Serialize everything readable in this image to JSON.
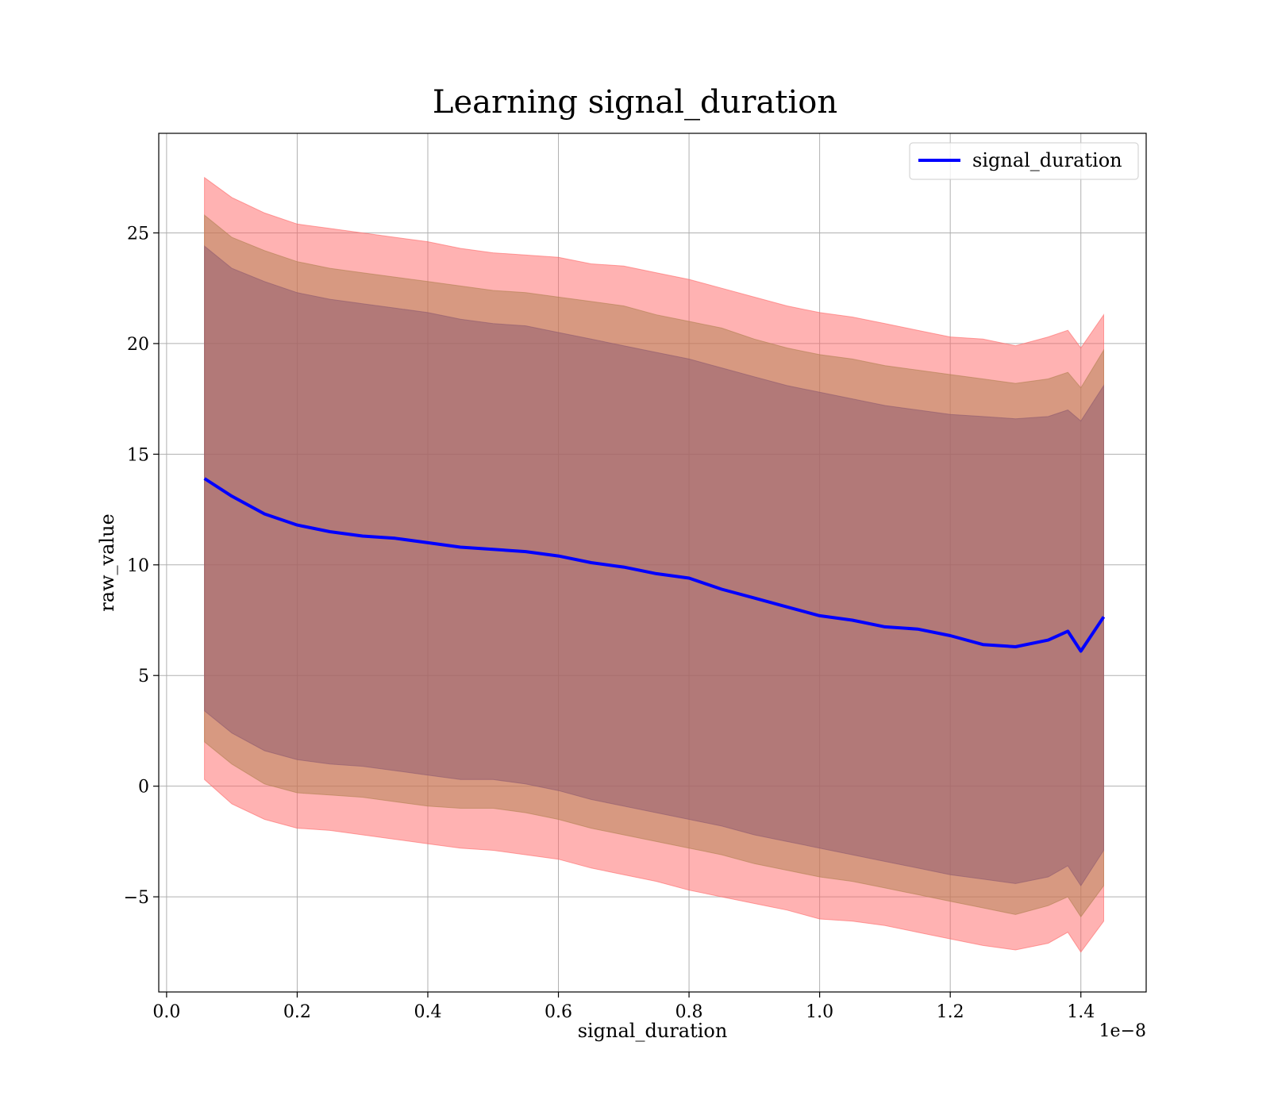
{
  "chart_data": {
    "type": "area",
    "title": "Learning signal_duration",
    "xlabel": "signal_duration",
    "ylabel": "raw_value",
    "x_scale_label": "1e−8",
    "xlim": [
      -0.012,
      1.5
    ],
    "ylim": [
      -9.3,
      29.5
    ],
    "x_ticks": [
      0.0,
      0.2,
      0.4,
      0.6,
      0.8,
      1.0,
      1.2,
      1.4
    ],
    "x_tick_labels": [
      "0.0",
      "0.2",
      "0.4",
      "0.6",
      "0.8",
      "1.0",
      "1.2",
      "1.4"
    ],
    "y_ticks": [
      -5,
      0,
      5,
      10,
      15,
      20,
      25
    ],
    "y_tick_labels": [
      "−5",
      "0",
      "5",
      "10",
      "15",
      "20",
      "25"
    ],
    "grid": true,
    "legend_placement": "top-right",
    "x": [
      0.058,
      0.1,
      0.15,
      0.2,
      0.25,
      0.3,
      0.35,
      0.4,
      0.45,
      0.5,
      0.55,
      0.6,
      0.65,
      0.7,
      0.75,
      0.8,
      0.85,
      0.9,
      0.95,
      1.0,
      1.05,
      1.1,
      1.15,
      1.2,
      1.25,
      1.3,
      1.35,
      1.38,
      1.4,
      1.435
    ],
    "series": [
      {
        "name": "signal_duration",
        "color": "#0000ff",
        "values": [
          13.9,
          13.1,
          12.3,
          11.8,
          11.5,
          11.3,
          11.2,
          11.0,
          10.8,
          10.7,
          10.6,
          10.4,
          10.1,
          9.9,
          9.6,
          9.4,
          8.9,
          8.5,
          8.1,
          7.7,
          7.5,
          7.2,
          7.1,
          6.8,
          6.4,
          6.3,
          6.6,
          7.0,
          6.1,
          7.65
        ]
      }
    ],
    "bands": [
      {
        "role": "outer",
        "color": "#ff6666",
        "lower": [
          0.3,
          -0.8,
          -1.5,
          -1.9,
          -2.0,
          -2.2,
          -2.4,
          -2.6,
          -2.8,
          -2.9,
          -3.1,
          -3.3,
          -3.7,
          -4.0,
          -4.3,
          -4.7,
          -5.0,
          -5.3,
          -5.6,
          -6.0,
          -6.1,
          -6.3,
          -6.6,
          -6.9,
          -7.2,
          -7.4,
          -7.1,
          -6.6,
          -7.5,
          -6.1
        ],
        "upper": [
          27.5,
          26.6,
          25.9,
          25.4,
          25.2,
          25.0,
          24.8,
          24.6,
          24.3,
          24.1,
          24.0,
          23.9,
          23.6,
          23.5,
          23.2,
          22.9,
          22.5,
          22.1,
          21.7,
          21.4,
          21.2,
          20.9,
          20.6,
          20.3,
          20.2,
          19.9,
          20.3,
          20.6,
          19.8,
          21.3
        ]
      },
      {
        "role": "middle",
        "color": "#b08050",
        "lower": [
          2.0,
          1.0,
          0.1,
          -0.3,
          -0.4,
          -0.5,
          -0.7,
          -0.9,
          -1.0,
          -1.0,
          -1.2,
          -1.5,
          -1.9,
          -2.2,
          -2.5,
          -2.8,
          -3.1,
          -3.5,
          -3.8,
          -4.1,
          -4.3,
          -4.6,
          -4.9,
          -5.2,
          -5.5,
          -5.8,
          -5.4,
          -5.0,
          -5.9,
          -4.5
        ],
        "upper": [
          25.8,
          24.8,
          24.2,
          23.7,
          23.4,
          23.2,
          23.0,
          22.8,
          22.6,
          22.4,
          22.3,
          22.1,
          21.9,
          21.7,
          21.3,
          21.0,
          20.7,
          20.2,
          19.8,
          19.5,
          19.3,
          19.0,
          18.8,
          18.6,
          18.4,
          18.2,
          18.4,
          18.7,
          18.0,
          19.7
        ]
      },
      {
        "role": "inner",
        "color": "#8e5a70",
        "lower": [
          3.4,
          2.4,
          1.6,
          1.2,
          1.0,
          0.9,
          0.7,
          0.5,
          0.3,
          0.3,
          0.1,
          -0.2,
          -0.6,
          -0.9,
          -1.2,
          -1.5,
          -1.8,
          -2.2,
          -2.5,
          -2.8,
          -3.1,
          -3.4,
          -3.7,
          -4.0,
          -4.2,
          -4.4,
          -4.1,
          -3.6,
          -4.5,
          -2.9
        ],
        "upper": [
          24.4,
          23.4,
          22.8,
          22.3,
          22.0,
          21.8,
          21.6,
          21.4,
          21.1,
          20.9,
          20.8,
          20.5,
          20.2,
          19.9,
          19.6,
          19.3,
          18.9,
          18.5,
          18.1,
          17.8,
          17.5,
          17.2,
          17.0,
          16.8,
          16.7,
          16.6,
          16.7,
          17.0,
          16.5,
          18.1
        ]
      }
    ]
  }
}
